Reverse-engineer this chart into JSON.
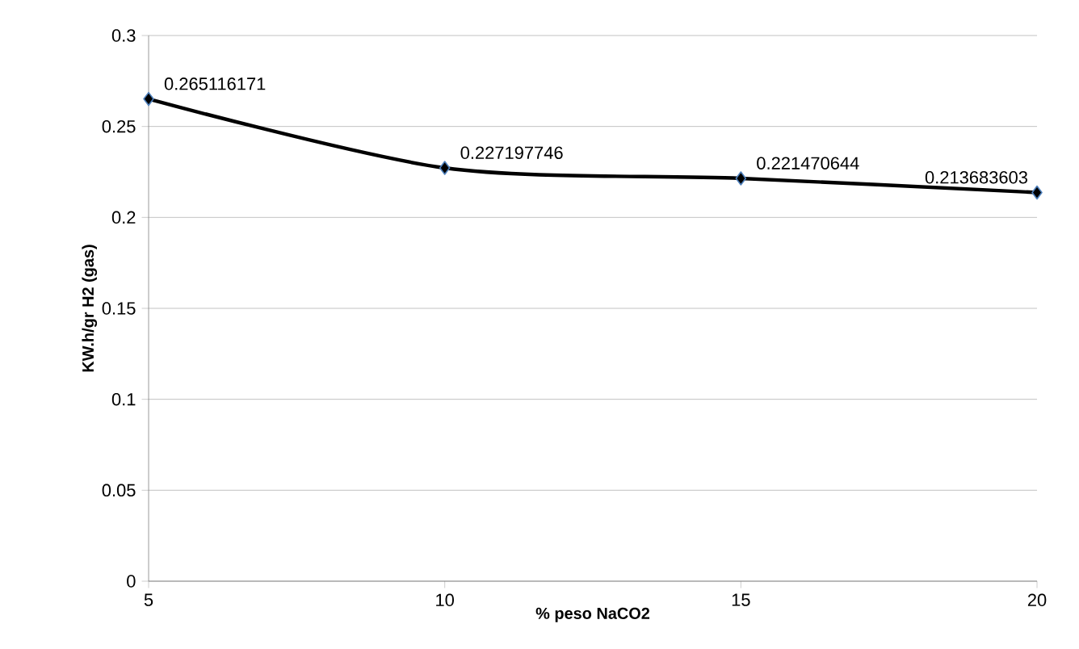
{
  "chart_data": {
    "type": "line",
    "xlabel": "% peso NaCO2",
    "ylabel": "KW.h/gr H2 (gas)",
    "x": [
      5,
      10,
      15,
      20
    ],
    "series": [
      {
        "color": "#000000",
        "values": [
          0.265116171,
          0.227197746,
          0.221470644,
          0.213683603
        ]
      }
    ],
    "xlim": [
      5,
      20
    ],
    "xticks": [
      5,
      10,
      15,
      20
    ],
    "ylim": [
      0,
      0.3
    ],
    "yticks": [
      0,
      0.05,
      0.1,
      0.15,
      0.2,
      0.25,
      0.3
    ],
    "grid": "y",
    "marker": "diamond",
    "line_style": "solid",
    "data_labels": true
  }
}
